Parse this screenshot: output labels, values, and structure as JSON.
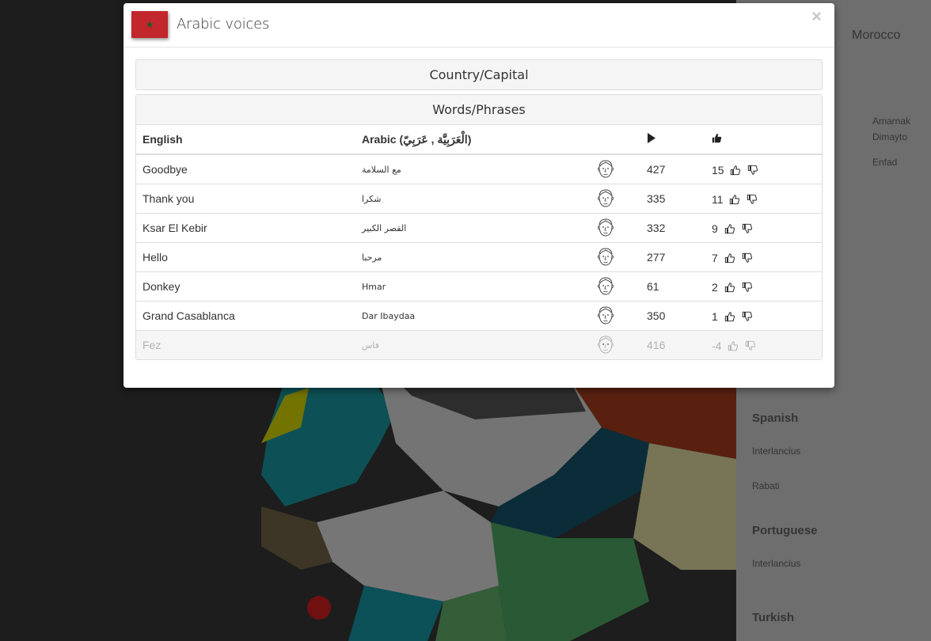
{
  "modal": {
    "title": "Arabic voices",
    "close_label": "×",
    "sections": {
      "country_capital": "Country/Capital",
      "words_phrases": "Words/Phrases"
    }
  },
  "table": {
    "headers": {
      "english": "English",
      "arabic": "Arabic (الْعَرَبِيَّة , عَرَبِيّ)",
      "plays_icon": "play-icon",
      "rating_icon": "thumbs-up-icon"
    },
    "rows": [
      {
        "english": "Goodbye",
        "arabic": "مع السلامة",
        "plays": "427",
        "rating": "15",
        "disabled": false
      },
      {
        "english": "Thank you",
        "arabic": "شكرا",
        "plays": "335",
        "rating": "11",
        "disabled": false
      },
      {
        "english": "Ksar El Kebir",
        "arabic": "القصر الكبير",
        "plays": "332",
        "rating": "9",
        "disabled": false
      },
      {
        "english": "Hello",
        "arabic": "مرحبا",
        "plays": "277",
        "rating": "7",
        "disabled": false
      },
      {
        "english": "Donkey",
        "arabic": "Hmar",
        "plays": "61",
        "rating": "2",
        "disabled": false
      },
      {
        "english": "Grand Casablanca",
        "arabic": "Dar Ibaydaa",
        "plays": "350",
        "rating": "1",
        "disabled": false
      },
      {
        "english": "Fez",
        "arabic": "فاس",
        "plays": "416",
        "rating": "-4",
        "disabled": true
      }
    ]
  },
  "background": {
    "side_panel_items": [
      "Morocco",
      "Amarnak",
      "Dimayto",
      "Enfad",
      "Spanish",
      "Interlancius",
      "Rabati",
      "Portuguese",
      "Interlancius",
      "Turkish"
    ]
  },
  "colors": {
    "flag_red": "#c1272d",
    "flag_star": "#1f5a2a",
    "disabled_text": "#b0b0b0"
  }
}
